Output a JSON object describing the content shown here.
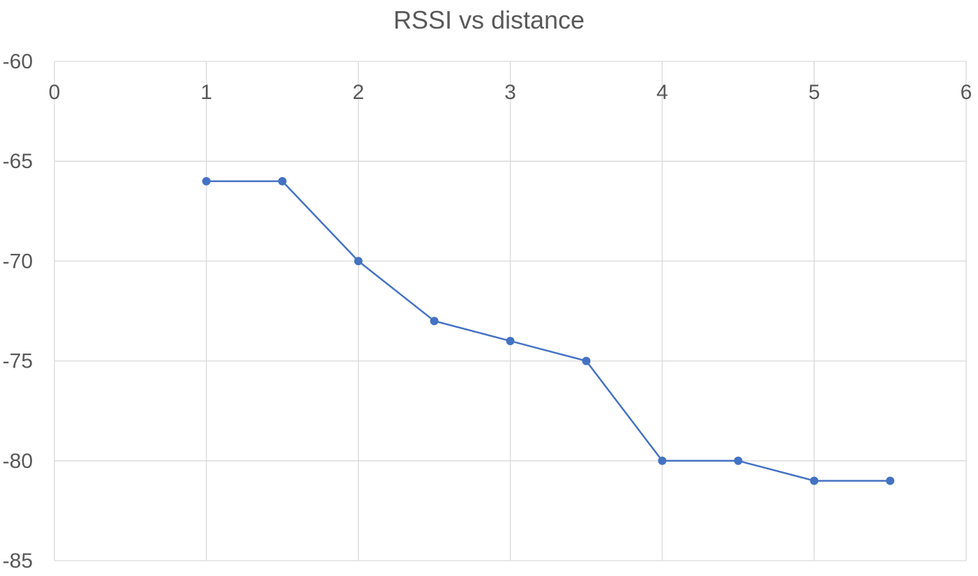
{
  "chart_data": {
    "type": "scatter",
    "title": "RSSI vs distance",
    "xlabel": "",
    "ylabel": "",
    "xlim": [
      0,
      6
    ],
    "ylim": [
      -85,
      -60
    ],
    "x_ticks": [
      "0",
      "1",
      "2",
      "3",
      "4",
      "5",
      "6"
    ],
    "y_ticks": [
      "-60",
      "-65",
      "-70",
      "-75",
      "-80",
      "-85"
    ],
    "x_tick_values": [
      0,
      1,
      2,
      3,
      4,
      5,
      6
    ],
    "y_tick_values": [
      -60,
      -65,
      -70,
      -75,
      -80,
      -85
    ],
    "x_axis_position": "top",
    "grid": true,
    "legend": "none",
    "series": [
      {
        "x": [
          1,
          1.5,
          2,
          2.5,
          3,
          3.5,
          4,
          4.5,
          5,
          5.5
        ],
        "y": [
          -66,
          -66,
          -70,
          -73,
          -74,
          -75,
          -80,
          -80,
          -81,
          -81
        ],
        "line": "straight",
        "markers": true,
        "color": "#4472C4"
      }
    ]
  },
  "colors": {
    "series": "#4472C4",
    "grid": "#D9D9D9",
    "text": "#595959"
  }
}
